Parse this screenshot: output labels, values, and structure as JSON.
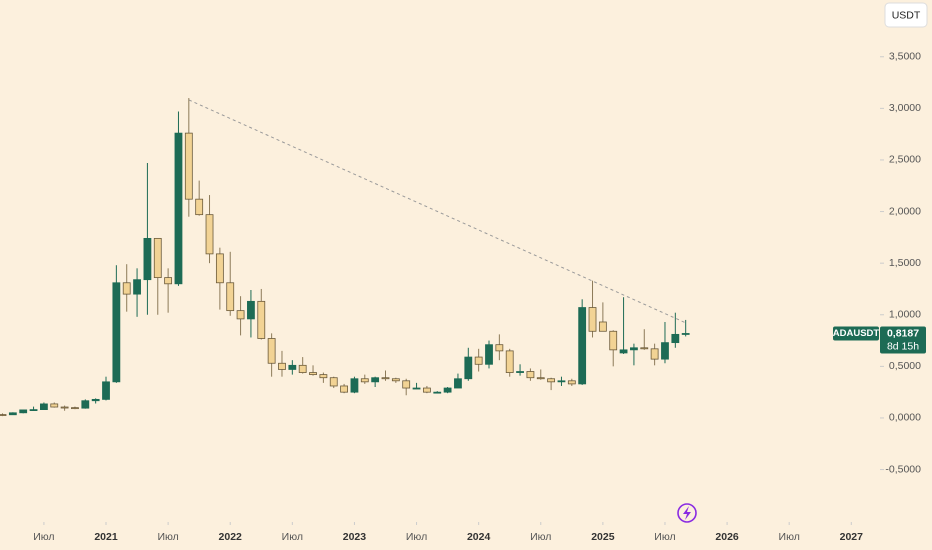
{
  "chart_data": {
    "type": "candlestick",
    "currency": "USDT",
    "symbol": "ADAUSDT",
    "countdown": "8d 15h",
    "last_price": {
      "value": 0.8187,
      "label": "0,8187"
    },
    "up_color": "#1d6b55",
    "down_color": "#f2d394",
    "x": [
      "2020-03",
      "2020-04",
      "2020-05",
      "2020-06",
      "2020-07",
      "2020-08",
      "2020-09",
      "2020-10",
      "2020-11",
      "2020-12",
      "2021-01",
      "2021-02",
      "2021-03",
      "2021-04",
      "2021-05",
      "2021-06",
      "2021-07",
      "2021-08",
      "2021-09",
      "2021-10",
      "2021-11",
      "2021-12",
      "2022-01",
      "2022-02",
      "2022-03",
      "2022-04",
      "2022-05",
      "2022-06",
      "2022-07",
      "2022-08",
      "2022-09",
      "2022-10",
      "2022-11",
      "2022-12",
      "2023-01",
      "2023-02",
      "2023-03",
      "2023-04",
      "2023-05",
      "2023-06",
      "2023-07",
      "2023-08",
      "2023-09",
      "2023-10",
      "2023-11",
      "2023-12",
      "2024-01",
      "2024-02",
      "2024-03",
      "2024-04",
      "2024-05",
      "2024-06",
      "2024-07",
      "2024-08",
      "2024-09",
      "2024-10",
      "2024-11",
      "2024-12",
      "2025-01",
      "2025-02",
      "2025-03",
      "2025-04",
      "2025-05",
      "2025-06",
      "2025-07",
      "2025-08",
      "2025-09"
    ],
    "series": [
      {
        "name": "ADAUSDT",
        "open": [
          0.033,
          0.031,
          0.05,
          0.078,
          0.081,
          0.136,
          0.106,
          0.1,
          0.095,
          0.167,
          0.18,
          0.35,
          1.31,
          1.2,
          1.34,
          1.74,
          1.36,
          1.3,
          2.76,
          2.12,
          1.97,
          1.59,
          1.31,
          1.04,
          0.96,
          1.13,
          0.77,
          0.53,
          0.47,
          0.51,
          0.44,
          0.42,
          0.39,
          0.31,
          0.25,
          0.38,
          0.35,
          0.39,
          0.38,
          0.36,
          0.29,
          0.29,
          0.25,
          0.25,
          0.29,
          0.38,
          0.59,
          0.52,
          0.71,
          0.65,
          0.44,
          0.45,
          0.39,
          0.38,
          0.35,
          0.36,
          0.33,
          1.07,
          0.93,
          0.84,
          0.63,
          0.66,
          0.68,
          0.67,
          0.57,
          0.73,
          0.81
        ],
        "high": [
          0.045,
          0.055,
          0.08,
          0.11,
          0.15,
          0.15,
          0.12,
          0.11,
          0.18,
          0.19,
          0.4,
          1.48,
          1.49,
          1.45,
          2.47,
          1.74,
          1.45,
          2.97,
          3.1,
          2.3,
          2.16,
          1.65,
          1.61,
          1.18,
          1.24,
          1.25,
          0.82,
          0.65,
          0.56,
          0.59,
          0.51,
          0.44,
          0.4,
          0.33,
          0.4,
          0.42,
          0.4,
          0.46,
          0.39,
          0.38,
          0.34,
          0.31,
          0.26,
          0.3,
          0.43,
          0.68,
          0.67,
          0.75,
          0.81,
          0.67,
          0.52,
          0.48,
          0.47,
          0.39,
          0.4,
          0.38,
          1.15,
          1.33,
          1.12,
          0.85,
          1.17,
          0.72,
          0.86,
          0.72,
          0.93,
          1.02,
          0.95
        ],
        "low": [
          0.018,
          0.029,
          0.045,
          0.07,
          0.078,
          0.1,
          0.07,
          0.085,
          0.09,
          0.14,
          0.17,
          0.34,
          1.03,
          0.98,
          1.0,
          1.0,
          1.02,
          1.28,
          1.95,
          1.96,
          1.5,
          1.05,
          0.99,
          0.8,
          0.78,
          0.76,
          0.4,
          0.4,
          0.42,
          0.43,
          0.41,
          0.34,
          0.29,
          0.24,
          0.24,
          0.33,
          0.3,
          0.36,
          0.34,
          0.22,
          0.28,
          0.24,
          0.24,
          0.24,
          0.29,
          0.36,
          0.45,
          0.48,
          0.56,
          0.4,
          0.41,
          0.36,
          0.37,
          0.27,
          0.31,
          0.31,
          0.32,
          0.78,
          0.84,
          0.5,
          0.62,
          0.51,
          0.66,
          0.51,
          0.53,
          0.68,
          0.79
        ],
        "close": [
          0.031,
          0.05,
          0.078,
          0.081,
          0.136,
          0.106,
          0.1,
          0.095,
          0.167,
          0.18,
          0.35,
          1.31,
          1.2,
          1.34,
          1.74,
          1.36,
          1.3,
          2.76,
          2.12,
          1.97,
          1.59,
          1.31,
          1.04,
          0.96,
          1.13,
          0.77,
          0.53,
          0.47,
          0.51,
          0.44,
          0.42,
          0.39,
          0.31,
          0.25,
          0.38,
          0.35,
          0.39,
          0.38,
          0.36,
          0.29,
          0.29,
          0.25,
          0.25,
          0.29,
          0.38,
          0.59,
          0.52,
          0.71,
          0.65,
          0.44,
          0.45,
          0.39,
          0.38,
          0.35,
          0.36,
          0.33,
          1.07,
          0.84,
          0.84,
          0.66,
          0.66,
          0.68,
          0.67,
          0.57,
          0.73,
          0.81,
          0.8187
        ]
      }
    ],
    "xlim": [
      "2020-03",
      "2027-03"
    ],
    "xticks": [
      {
        "value": "2020-07",
        "label": "Июл"
      },
      {
        "value": "2021-01",
        "label": "2021"
      },
      {
        "value": "2021-07",
        "label": "Июл"
      },
      {
        "value": "2022-01",
        "label": "2022"
      },
      {
        "value": "2022-07",
        "label": "Июл"
      },
      {
        "value": "2023-01",
        "label": "2023"
      },
      {
        "value": "2023-07",
        "label": "Июл"
      },
      {
        "value": "2024-01",
        "label": "2024"
      },
      {
        "value": "2024-07",
        "label": "Июл"
      },
      {
        "value": "2025-01",
        "label": "2025"
      },
      {
        "value": "2025-07",
        "label": "Июл"
      },
      {
        "value": "2026-01",
        "label": "2026"
      },
      {
        "value": "2026-07",
        "label": "Июл"
      },
      {
        "value": "2027-01",
        "label": "2027"
      }
    ],
    "ylim": [
      -0.95,
      4.05
    ],
    "yticks": [
      {
        "value": -0.5,
        "label": "-0,5000"
      },
      {
        "value": 0,
        "label": "0,0000"
      },
      {
        "value": 0.5,
        "label": "0,5000"
      },
      {
        "value": 1,
        "label": "1,0000"
      },
      {
        "value": 1.5,
        "label": "1,5000"
      },
      {
        "value": 2,
        "label": "2,0000"
      },
      {
        "value": 2.5,
        "label": "2,5000"
      },
      {
        "value": 3,
        "label": "3,0000"
      },
      {
        "value": 3.5,
        "label": "3,5000"
      }
    ]
  }
}
